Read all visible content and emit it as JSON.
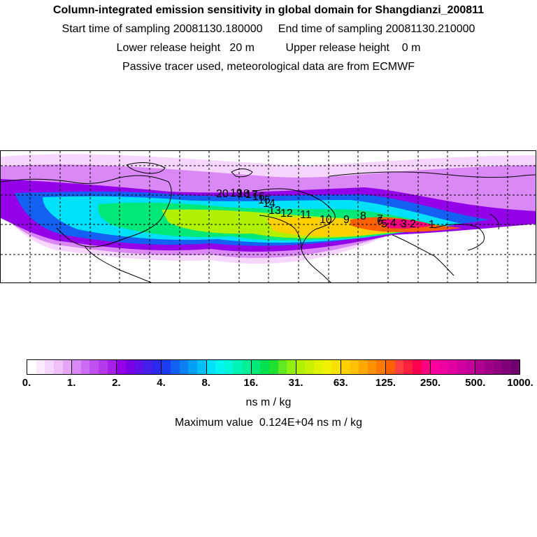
{
  "header": {
    "title": "Column-integrated emission sensitivity in global domain for Shangdianzi_200811",
    "line2": "Start time of sampling 20081130.180000     End time of sampling 20081130.210000",
    "line3": "Lower release height   20 m          Upper release height    0 m",
    "line4": "Passive tracer used, meteorological data are from ECMWF"
  },
  "map": {
    "trajectory_labels": [
      "1",
      "2",
      "3",
      "4",
      "5",
      "6",
      "7",
      "8",
      "9",
      "10",
      "11",
      "12",
      "13",
      "14",
      "15",
      "16",
      "17",
      "18",
      "19",
      "20"
    ]
  },
  "colorbar": {
    "tick_labels": [
      "0.",
      "1.",
      "2.",
      "4.",
      "8.",
      "16.",
      "31.",
      "63.",
      "125.",
      "250.",
      "500.",
      "1000."
    ],
    "colors": [
      "#ffffff",
      "#fbeafe",
      "#f6d6fd",
      "#efc0fb",
      "#e6a6f8",
      "#d988f5",
      "#cc6cf2",
      "#c150f0",
      "#b53aee",
      "#a820ec",
      "#9400e8",
      "#7a00e6",
      "#6010e8",
      "#4620ea",
      "#2a2aee",
      "#1c3cf2",
      "#1460f2",
      "#0a80f4",
      "#00a0f6",
      "#00c0f8",
      "#00e0f8",
      "#00f4f0",
      "#00f8d8",
      "#00f4b8",
      "#00f098",
      "#00e878",
      "#00e050",
      "#20e030",
      "#60e820",
      "#90f010",
      "#b0f000",
      "#c8f000",
      "#e0f400",
      "#f0f000",
      "#f8e000",
      "#ffd000",
      "#ffc000",
      "#ffa800",
      "#ff9000",
      "#ff7800",
      "#ff6000",
      "#ff4040",
      "#ff2040",
      "#ff0050",
      "#ff0080",
      "#ff00a0",
      "#f000a0",
      "#e000a0",
      "#d000a0",
      "#c00098",
      "#b00090",
      "#a00088",
      "#900080",
      "#800078",
      "#700070"
    ],
    "unit": "ns m / kg",
    "maximum_text": "Maximum value  0.124E+04 ns m / kg"
  }
}
